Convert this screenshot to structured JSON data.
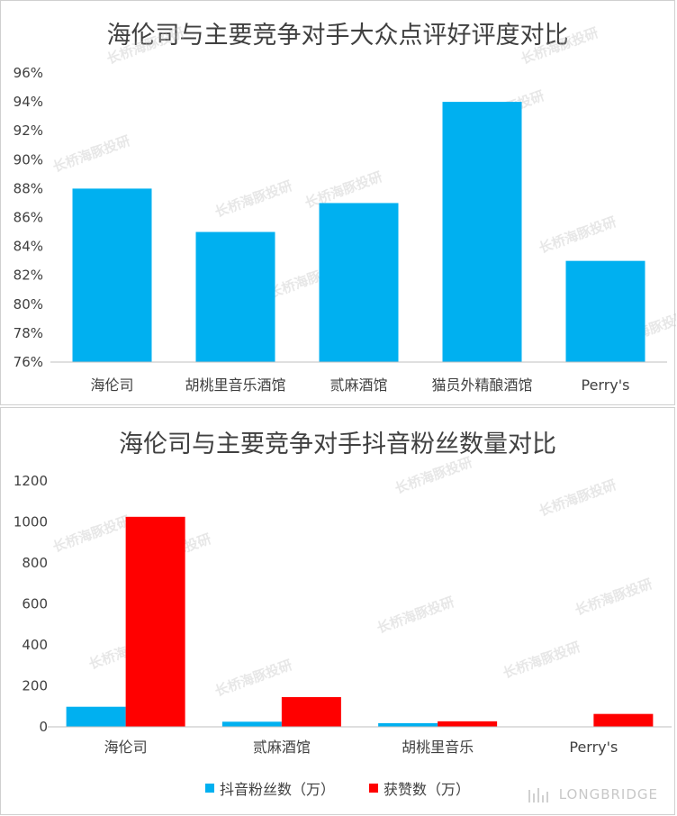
{
  "chart_data": [
    {
      "type": "bar",
      "title": "海伦司与主要竞争对手大众点评好评度对比",
      "categories": [
        "海伦司",
        "胡桃里音乐酒馆",
        "贰麻酒馆",
        "猫员外精酿酒馆",
        "Perry's"
      ],
      "series": [
        {
          "values": [
            88,
            85,
            87,
            94,
            83
          ],
          "color": "#00b0f0"
        }
      ],
      "ylim": [
        76,
        96
      ],
      "yticks": [
        "76%",
        "78%",
        "80%",
        "82%",
        "84%",
        "86%",
        "88%",
        "90%",
        "92%",
        "94%",
        "96%"
      ],
      "grid": false
    },
    {
      "type": "bar",
      "title": "海伦司与主要竞争对手抖音粉丝数量对比",
      "categories": [
        "海伦司",
        "贰麻酒馆",
        "胡桃里音乐",
        "Perry's"
      ],
      "series": [
        {
          "name": "抖音粉丝数（万）",
          "values": [
            98,
            25,
            18,
            0
          ],
          "color": "#00b0f0"
        },
        {
          "name": "获赞数（万）",
          "values": [
            1025,
            145,
            27,
            63
          ],
          "color": "#ff0000"
        }
      ],
      "ylim": [
        0,
        1200
      ],
      "yticks": [
        "0",
        "200",
        "400",
        "600",
        "800",
        "1000",
        "1200"
      ],
      "legend": "bottom",
      "grid": false
    }
  ],
  "watermark": "长桥海豚投研",
  "brand": "LONGBRIDGE"
}
